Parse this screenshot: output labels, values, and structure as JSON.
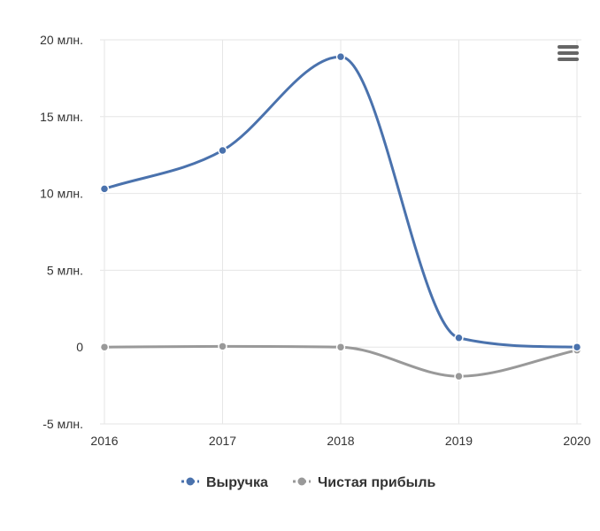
{
  "chart_data": {
    "type": "line",
    "categories": [
      "2016",
      "2017",
      "2018",
      "2019",
      "2020"
    ],
    "series": [
      {
        "name": "Выручка",
        "values": [
          10.3,
          12.8,
          18.9,
          0.6,
          0
        ],
        "color": "#4a72ad"
      },
      {
        "name": "Чистая прибыль",
        "values": [
          0,
          0.05,
          0,
          -1.9,
          -0.2
        ],
        "color": "#999999"
      }
    ],
    "y_ticks": [
      {
        "value": 20,
        "label": "20 млн."
      },
      {
        "value": 15,
        "label": "15 млн."
      },
      {
        "value": 10,
        "label": "10 млн."
      },
      {
        "value": 5,
        "label": "5 млн."
      },
      {
        "value": 0,
        "label": "0"
      },
      {
        "value": -5,
        "label": "-5 млн."
      }
    ],
    "ylim": [
      -5,
      20
    ],
    "grid": true,
    "legend_position": "bottom-center"
  },
  "menu": {
    "icon": "hamburger-menu-icon"
  }
}
